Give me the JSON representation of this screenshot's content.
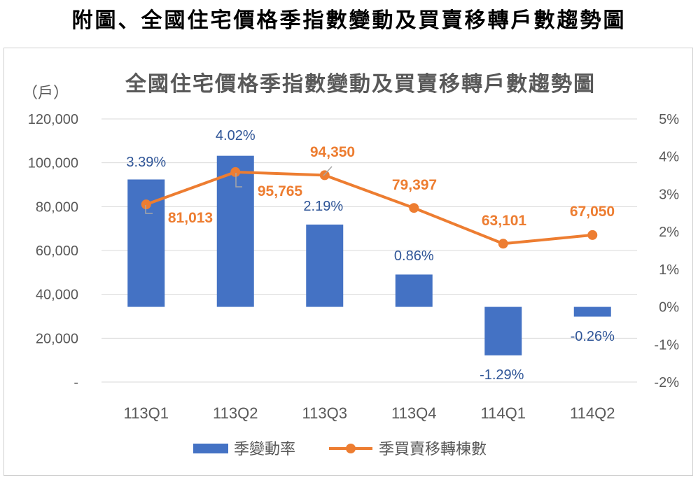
{
  "page_title": "附圖、全國住宅價格季指數變動及買賣移轉戶數趨勢圖",
  "chart_data": {
    "type": "bar",
    "title": "全國住宅價格季指數變動及買賣移轉戶數趨勢圖",
    "left_unit_label": "（戶）",
    "categories": [
      "113Q1",
      "113Q2",
      "113Q3",
      "113Q4",
      "114Q1",
      "114Q2"
    ],
    "left_axis": {
      "ylim": [
        0,
        120000
      ],
      "ticks": [
        0,
        20000,
        40000,
        60000,
        80000,
        100000,
        120000
      ],
      "tick_labels": [
        "-",
        "20,000",
        "40,000",
        "60,000",
        "80,000",
        "100,000",
        "120,000"
      ]
    },
    "right_axis": {
      "ylim": [
        -2,
        5
      ],
      "ticks": [
        -2,
        -1,
        0,
        1,
        2,
        3,
        4,
        5
      ],
      "tick_labels": [
        "-2%",
        "-1%",
        "0%",
        "1%",
        "2%",
        "3%",
        "4%",
        "5%"
      ]
    },
    "series": [
      {
        "name": "季變動率",
        "type": "bar",
        "axis": "right",
        "color": "#4472C4",
        "values": [
          3.39,
          4.02,
          2.19,
          0.86,
          -1.29,
          -0.26
        ],
        "labels": [
          "3.39%",
          "4.02%",
          "2.19%",
          "0.86%",
          "-1.29%",
          "-0.26%"
        ]
      },
      {
        "name": "季買賣移轉棟數",
        "type": "line",
        "axis": "left",
        "color": "#ED7D31",
        "values": [
          81013,
          95765,
          94350,
          79397,
          63101,
          67050
        ],
        "labels": [
          "81,013",
          "95,765",
          "94,350",
          "79,397",
          "63,101",
          "67,050"
        ]
      }
    ],
    "grid": true,
    "legend_position": "bottom"
  }
}
